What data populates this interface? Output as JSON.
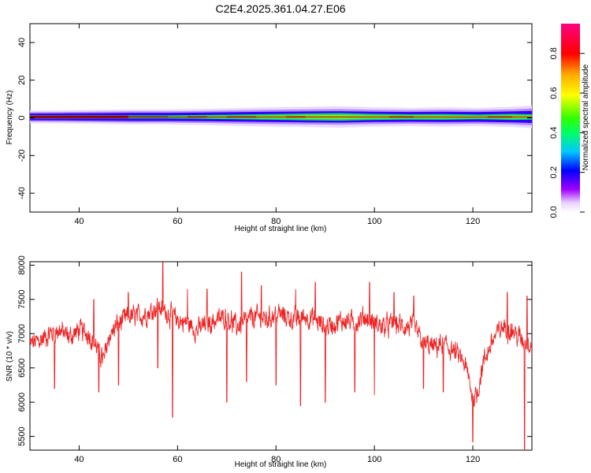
{
  "title": "C2E4.2025.361.04.27.E06",
  "chart_data": [
    {
      "type": "heatmap",
      "xlabel": "Height of straight line (km)",
      "ylabel": "Frequency (Hz)",
      "xlim": [
        30,
        132
      ],
      "ylim": [
        -50,
        50
      ],
      "xticks": [
        "40",
        "60",
        "80",
        "100",
        "120"
      ],
      "yticks": [
        "40",
        "20",
        "0",
        "-20",
        "-40"
      ],
      "colorbar": {
        "label": "Normalized spectral amplitude",
        "range": [
          0,
          0.95
        ],
        "ticks": [
          "0.0",
          "0.2",
          "0.4",
          "0.6",
          "0.8"
        ]
      },
      "band": {
        "center_hz": 0.5,
        "core_halfwidth_hz": [
          0.8,
          0.8,
          0.8,
          0.8,
          0.8,
          1.0,
          1.2,
          1.5,
          1.8,
          2.0,
          1.6,
          1.4,
          1.5,
          1.2,
          1.6,
          1.4
        ],
        "outer_halfwidth_hz": [
          2.5,
          2.6,
          2.8,
          3.0,
          3.0,
          3.2,
          3.5,
          3.8,
          4.0,
          4.2,
          3.8,
          3.6,
          3.8,
          3.6,
          4.0,
          4.5
        ],
        "x_km": [
          30,
          37,
          44,
          51,
          58,
          65,
          72,
          79,
          86,
          93,
          100,
          107,
          114,
          121,
          128,
          132
        ]
      }
    },
    {
      "type": "line",
      "xlabel": "Height of straight line (km)",
      "ylabel": "SNR (10 * v/v)",
      "xlim": [
        30,
        132
      ],
      "ylim": [
        5300,
        8050
      ],
      "xticks": [
        "40",
        "60",
        "80",
        "100",
        "120"
      ],
      "yticks": [
        "8000",
        "7500",
        "7000",
        "6500",
        "6000",
        "5500"
      ],
      "series": [
        {
          "color": "#ee2222",
          "x": [
            30,
            32,
            34,
            36,
            38,
            40,
            42,
            44,
            45,
            46,
            48,
            50,
            52,
            54,
            56,
            58,
            60,
            62,
            64,
            66,
            68,
            70,
            72,
            74,
            76,
            78,
            80,
            82,
            84,
            86,
            88,
            90,
            92,
            94,
            96,
            98,
            100,
            102,
            104,
            106,
            108,
            110,
            112,
            114,
            116,
            118,
            119,
            120,
            121,
            122,
            124,
            126,
            128,
            130,
            132
          ],
          "y": [
            6850,
            6900,
            7000,
            7050,
            6950,
            7050,
            7000,
            6750,
            6600,
            6950,
            7150,
            7250,
            7250,
            7300,
            7400,
            7300,
            7200,
            7150,
            7050,
            7150,
            7200,
            7250,
            7100,
            7200,
            7250,
            7200,
            7300,
            7250,
            7200,
            7250,
            7200,
            7100,
            7150,
            7200,
            7150,
            7250,
            7150,
            7100,
            7150,
            7100,
            7100,
            6850,
            6800,
            6850,
            6750,
            6600,
            6400,
            6050,
            6150,
            6550,
            6900,
            7100,
            7050,
            6900,
            6850
          ],
          "dips": [
            [
              35,
              6200
            ],
            [
              44,
              6150
            ],
            [
              48,
              6250
            ],
            [
              56,
              6500
            ],
            [
              59,
              5780
            ],
            [
              66,
              6200
            ],
            [
              70,
              6000
            ],
            [
              74,
              6300
            ],
            [
              80,
              6250
            ],
            [
              85,
              5950
            ],
            [
              90,
              6000
            ],
            [
              96,
              6150
            ],
            [
              100,
              6100
            ],
            [
              110,
              6200
            ],
            [
              114,
              6150
            ],
            [
              120,
              5420
            ],
            [
              130.5,
              5300
            ]
          ],
          "peaks": [
            [
              43,
              7500
            ],
            [
              50,
              7600
            ],
            [
              57,
              8040
            ],
            [
              62,
              7650
            ],
            [
              66,
              7650
            ],
            [
              73,
              7900
            ],
            [
              77,
              7700
            ],
            [
              84,
              7650
            ],
            [
              88,
              7750
            ],
            [
              99,
              7750
            ],
            [
              104,
              7600
            ],
            [
              108,
              7550
            ],
            [
              127,
              7600
            ],
            [
              131,
              7550
            ]
          ]
        }
      ]
    }
  ]
}
